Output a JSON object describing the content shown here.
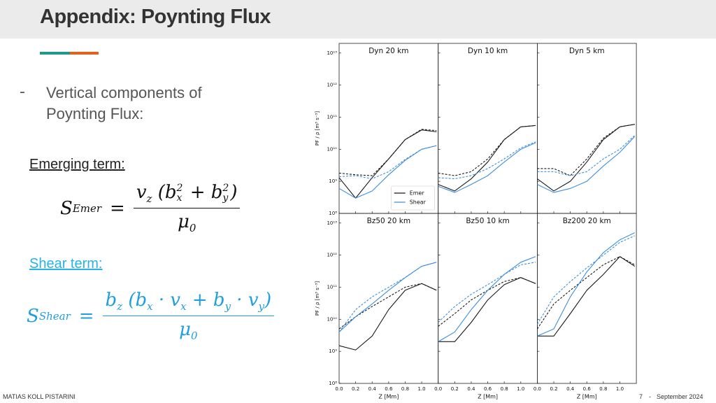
{
  "header": {
    "title": "Appendix: Poynting Flux"
  },
  "bullet": {
    "marker": "-",
    "text": "Vertical components of Poynting Flux:"
  },
  "emerging": {
    "label": "Emerging term:",
    "symbol": "S",
    "subscript": "Emer",
    "equals": "=",
    "numerator": [
      "v",
      "z",
      "(b",
      "2",
      "x",
      " + b",
      "2",
      "y",
      ")"
    ],
    "denominator": [
      "μ",
      "0"
    ]
  },
  "shear": {
    "label": "Shear term:",
    "symbol": "S",
    "subscript": "Shear",
    "equals": "=",
    "numerator": [
      "b",
      "z",
      "(b",
      "x",
      " · v",
      "x",
      " + b",
      "y",
      " · v",
      "y",
      ")"
    ],
    "denominator": [
      "μ",
      "0"
    ]
  },
  "footer": {
    "author": "MATIAS KOLL PISTARINI",
    "page": "7",
    "separator": "-",
    "date": "September 2024"
  },
  "chart_data": [
    {
      "type": "line",
      "title": "Dyn 20 km",
      "ylabel": "PF / ρ [m³ s⁻³]",
      "yscale": "log",
      "x": [
        0,
        0.2,
        0.4,
        0.6,
        0.8,
        1.0,
        1.18
      ],
      "xlim": [
        0,
        1.2
      ],
      "ylim": [
        100000000.0,
        20000000000000.0
      ],
      "yticks": [
        {
          "value": 100000000.0,
          "label": "10⁸"
        },
        {
          "value": 1000000000.0,
          "label": "10⁹"
        },
        {
          "value": 10000000000.0,
          "label": "10¹⁰"
        },
        {
          "value": 100000000000.0,
          "label": "10¹¹"
        },
        {
          "value": 1000000000000.0,
          "label": "10¹²"
        },
        {
          "value": 10000000000000.0,
          "label": "10¹³"
        }
      ],
      "legend": "lower right",
      "series": [
        {
          "name": "Emer",
          "color": "#1a1a1a",
          "values": [
            1300000000.0,
            300000000.0,
            1300000000.0,
            5000000000.0,
            20000000000.0,
            40000000000.0,
            35000000000.0
          ]
        },
        {
          "color": "#1a1a1a",
          "dashed": true,
          "values": [
            1800000000.0,
            1600000000.0,
            1500000000.0,
            5000000000.0,
            20000000000.0,
            42000000000.0,
            38000000000.0
          ]
        },
        {
          "name": "Shear",
          "color": "#3d8fde",
          "values": [
            600000000.0,
            300000000.0,
            500000000.0,
            1600000000.0,
            4500000000.0,
            10000000000.0,
            13000000000.0
          ]
        },
        {
          "color": "#3d8fde",
          "dashed": true,
          "values": [
            1400000000.0,
            1500000000.0,
            1200000000.0,
            2000000000.0,
            4800000000.0,
            10000000000.0,
            13000000000.0
          ]
        }
      ]
    },
    {
      "type": "line",
      "title": "Dyn 10 km",
      "yscale": "log",
      "x": [
        0,
        0.2,
        0.4,
        0.6,
        0.8,
        1.0,
        1.18
      ],
      "xlim": [
        0,
        1.2
      ],
      "ylim": [
        100000000.0,
        20000000000000.0
      ],
      "series": [
        {
          "color": "#1a1a1a",
          "values": [
            800000000.0,
            500000000.0,
            1200000000.0,
            4000000000.0,
            20000000000.0,
            50000000000.0,
            55000000000.0
          ]
        },
        {
          "color": "#1a1a1a",
          "dashed": true,
          "values": [
            1800000000.0,
            1500000000.0,
            2000000000.0,
            5000000000.0,
            20000000000.0,
            50000000000.0,
            55000000000.0
          ]
        },
        {
          "color": "#3d8fde",
          "values": [
            700000000.0,
            450000000.0,
            800000000.0,
            1500000000.0,
            4000000000.0,
            10000000000.0,
            16000000000.0
          ]
        },
        {
          "color": "#3d8fde",
          "dashed": true,
          "values": [
            1300000000.0,
            1200000000.0,
            1500000000.0,
            2500000000.0,
            5000000000.0,
            11000000000.0,
            17000000000.0
          ]
        }
      ]
    },
    {
      "type": "line",
      "title": "Dyn 5 km",
      "yscale": "log",
      "x": [
        0,
        0.2,
        0.4,
        0.6,
        0.8,
        1.0,
        1.18
      ],
      "xlim": [
        0,
        1.2
      ],
      "ylim": [
        100000000.0,
        20000000000000.0
      ],
      "series": [
        {
          "color": "#1a1a1a",
          "values": [
            1200000000.0,
            500000000.0,
            1000000000.0,
            4000000000.0,
            20000000000.0,
            50000000000.0,
            60000000000.0
          ]
        },
        {
          "color": "#1a1a1a",
          "dashed": true,
          "values": [
            2500000000.0,
            2500000000.0,
            1500000000.0,
            5000000000.0,
            22000000000.0,
            50000000000.0,
            60000000000.0
          ]
        },
        {
          "color": "#3d8fde",
          "values": [
            800000000.0,
            450000000.0,
            600000000.0,
            1000000000.0,
            3000000000.0,
            8000000000.0,
            25000000000.0
          ]
        },
        {
          "color": "#3d8fde",
          "dashed": true,
          "values": [
            2000000000.0,
            2000000000.0,
            1500000000.0,
            2000000000.0,
            5000000000.0,
            10000000000.0,
            27000000000.0
          ]
        }
      ]
    },
    {
      "type": "line",
      "title": "Bz50 20 km",
      "ylabel": "PF / ρ [m³ s⁻³]",
      "xlabel": "Z [Mm]",
      "yscale": "log",
      "x": [
        0,
        0.2,
        0.4,
        0.6,
        0.8,
        1.0,
        1.18
      ],
      "xlim": [
        0,
        1.2
      ],
      "ylim": [
        100000000.0,
        20000000000000.0
      ],
      "xticks": [
        {
          "value": 0,
          "label": "0.0"
        },
        {
          "value": 0.2,
          "label": "0.2"
        },
        {
          "value": 0.4,
          "label": "0.4"
        },
        {
          "value": 0.6,
          "label": "0.6"
        },
        {
          "value": 0.8,
          "label": "0.8"
        },
        {
          "value": 1,
          "label": "1.0"
        }
      ],
      "yticks": [
        {
          "value": 100000000.0,
          "label": "10⁸"
        },
        {
          "value": 1000000000.0,
          "label": "10⁹"
        },
        {
          "value": 10000000000.0,
          "label": "10¹⁰"
        },
        {
          "value": 100000000000.0,
          "label": "10¹¹"
        },
        {
          "value": 1000000000000.0,
          "label": "10¹²"
        },
        {
          "value": 10000000000000.0,
          "label": "10¹³"
        }
      ],
      "series": [
        {
          "color": "#1a1a1a",
          "values": [
            1500000000.0,
            1100000000.0,
            3000000000.0,
            20000000000.0,
            80000000000.0,
            130000000000.0,
            80000000000.0
          ]
        },
        {
          "color": "#1a1a1a",
          "dashed": true,
          "values": [
            5000000000.0,
            12000000000.0,
            25000000000.0,
            50000000000.0,
            100000000000.0,
            130000000000.0,
            80000000000.0
          ]
        },
        {
          "color": "#3d8fde",
          "values": [
            4000000000.0,
            12000000000.0,
            30000000000.0,
            80000000000.0,
            200000000000.0,
            450000000000.0,
            600000000000.0
          ]
        },
        {
          "color": "#3d8fde",
          "dashed": true,
          "values": [
            4000000000.0,
            20000000000.0,
            50000000000.0,
            100000000000.0,
            200000000000.0,
            450000000000.0,
            600000000000.0
          ]
        }
      ]
    },
    {
      "type": "line",
      "title": "Bz50 10 km",
      "xlabel": "Z [Mm]",
      "yscale": "log",
      "x": [
        0,
        0.2,
        0.4,
        0.6,
        0.8,
        1.0,
        1.18
      ],
      "xlim": [
        0,
        1.2
      ],
      "ylim": [
        100000000.0,
        20000000000000.0
      ],
      "xticks": [
        {
          "value": 0,
          "label": "0.0"
        },
        {
          "value": 0.2,
          "label": "0.2"
        },
        {
          "value": 0.4,
          "label": "0.4"
        },
        {
          "value": 0.6,
          "label": "0.6"
        },
        {
          "value": 0.8,
          "label": "0.8"
        },
        {
          "value": 1,
          "label": "1.0"
        }
      ],
      "series": [
        {
          "color": "#1a1a1a",
          "values": [
            2000000000.0,
            2000000000.0,
            8000000000.0,
            40000000000.0,
            120000000000.0,
            200000000000.0,
            130000000000.0
          ]
        },
        {
          "color": "#1a1a1a",
          "dashed": true,
          "values": [
            6000000000.0,
            15000000000.0,
            40000000000.0,
            80000000000.0,
            150000000000.0,
            200000000000.0,
            130000000000.0
          ]
        },
        {
          "color": "#3d8fde",
          "values": [
            2000000000.0,
            4000000000.0,
            20000000000.0,
            80000000000.0,
            250000000000.0,
            600000000000.0,
            900000000000.0
          ]
        },
        {
          "color": "#3d8fde",
          "dashed": true,
          "values": [
            8000000000.0,
            25000000000.0,
            60000000000.0,
            120000000000.0,
            250000000000.0,
            500000000000.0,
            600000000000.0
          ]
        }
      ]
    },
    {
      "type": "line",
      "title": "Bz200 20 km",
      "xlabel": "Z [Mm]",
      "yscale": "log",
      "x": [
        0,
        0.2,
        0.4,
        0.6,
        0.8,
        1.0,
        1.18
      ],
      "xlim": [
        0,
        1.2
      ],
      "ylim": [
        100000000.0,
        20000000000000.0
      ],
      "xticks": [
        {
          "value": 0,
          "label": "0.0"
        },
        {
          "value": 0.2,
          "label": "0.2"
        },
        {
          "value": 0.4,
          "label": "0.4"
        },
        {
          "value": 0.6,
          "label": "0.6"
        },
        {
          "value": 0.8,
          "label": "0.8"
        },
        {
          "value": 1,
          "label": "1.0"
        }
      ],
      "series": [
        {
          "color": "#1a1a1a",
          "values": [
            3000000000.0,
            3000000000.0,
            15000000000.0,
            80000000000.0,
            250000000000.0,
            900000000000.0,
            450000000000.0
          ]
        },
        {
          "color": "#1a1a1a",
          "dashed": true,
          "values": [
            5000000000.0,
            30000000000.0,
            80000000000.0,
            200000000000.0,
            500000000000.0,
            900000000000.0,
            500000000000.0
          ]
        },
        {
          "color": "#3d8fde",
          "values": [
            3000000000.0,
            5000000000.0,
            50000000000.0,
            300000000000.0,
            1200000000000.0,
            3000000000000.0,
            5000000000000.0
          ]
        },
        {
          "color": "#3d8fde",
          "dashed": true,
          "values": [
            7000000000.0,
            50000000000.0,
            150000000000.0,
            400000000000.0,
            1000000000000.0,
            2500000000000.0,
            4000000000000.0
          ]
        }
      ]
    }
  ]
}
